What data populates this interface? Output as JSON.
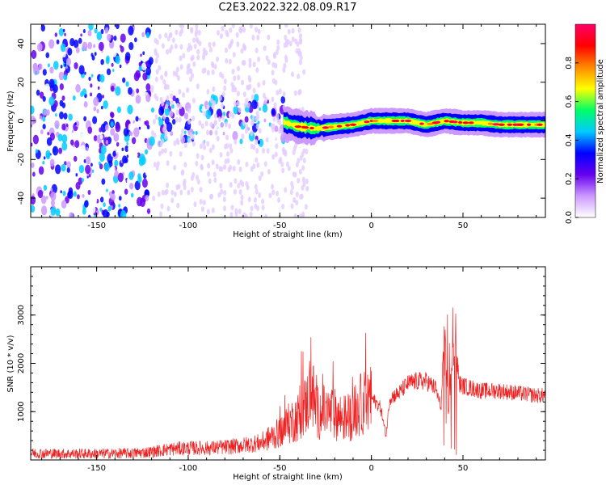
{
  "title": "C2E3.2022.322.08.09.R17",
  "colors": {
    "snr_line": "#ee2222",
    "frame": "#000000"
  },
  "chart_data": [
    {
      "type": "heatmap",
      "title": "C2E3.2022.322.08.09.R17",
      "xlabel": "Height of straight line (km)",
      "ylabel": "Frequency (Hz)",
      "xlim": [
        -186,
        95
      ],
      "ylim": [
        -50,
        50
      ],
      "xticks": [
        -150,
        -100,
        -50,
        0,
        50
      ],
      "xtick_labels": [
        "-150",
        "-100",
        "-50",
        "0",
        "50"
      ],
      "yticks": [
        -40,
        -20,
        0,
        20,
        40
      ],
      "ytick_labels": [
        "-40",
        "-20",
        "0",
        "20",
        "40"
      ],
      "colorbar": {
        "label": "Normalized spectral amplitude",
        "range": [
          0,
          1
        ],
        "ticks": [
          0.0,
          0.2,
          0.4,
          0.6,
          0.8
        ],
        "tick_labels": [
          "0.0",
          "0.2",
          "0.4",
          "0.6",
          "0.8"
        ],
        "colormap": [
          "#ffffff",
          "#cc99ff",
          "#6600ee",
          "#0000ff",
          "#00ccff",
          "#00ff66",
          "#ffff00",
          "#ff8800",
          "#ff0000",
          "#ff0066"
        ]
      },
      "ridge_frequency": {
        "x": [
          -50,
          -40,
          -30,
          -20,
          -10,
          0,
          10,
          20,
          30,
          40,
          50,
          60,
          70,
          80,
          90
        ],
        "y": [
          0,
          -3,
          -4,
          -3,
          -2,
          0,
          0,
          0,
          -2,
          0,
          -1,
          -1,
          -2,
          -2,
          -2
        ]
      },
      "noise_regions": [
        {
          "x_range": [
            -186,
            -120
          ],
          "freq_range": [
            -50,
            50
          ],
          "level": 0.3
        },
        {
          "x_range": [
            -120,
            -45
          ],
          "freq_range": [
            -12,
            12
          ],
          "level": 0.35
        }
      ]
    },
    {
      "type": "line",
      "xlabel": "Height of straight line (km)",
      "ylabel": "SNR (10 * v/v)",
      "xlim": [
        -186,
        95
      ],
      "ylim": [
        0,
        4000
      ],
      "xticks": [
        -150,
        -100,
        -50,
        0,
        50
      ],
      "xtick_labels": [
        "-150",
        "-100",
        "-50",
        "0",
        "50"
      ],
      "yticks": [
        1000,
        2000,
        3000
      ],
      "ytick_labels": [
        "1000",
        "2000",
        "3000"
      ],
      "series": [
        {
          "x": [
            -186,
            -170,
            -150,
            -130,
            -120,
            -110,
            -100,
            -90,
            -80,
            -70,
            -60,
            -55,
            -50,
            -45,
            -40,
            -35,
            -33,
            -30,
            -25,
            -20,
            -15,
            -10,
            -5,
            0,
            5,
            8,
            10,
            15,
            20,
            25,
            30,
            35,
            38,
            40,
            42,
            44,
            46,
            48,
            50,
            55,
            60,
            70,
            80,
            90,
            95
          ],
          "y": [
            150,
            140,
            140,
            150,
            180,
            240,
            260,
            260,
            280,
            320,
            380,
            500,
            600,
            800,
            950,
            1250,
            1650,
            1050,
            1050,
            1000,
            900,
            1000,
            1250,
            1300,
            1100,
            500,
            1300,
            1400,
            1600,
            1650,
            1650,
            1500,
            1100,
            2800,
            1000,
            2100,
            2400,
            1600,
            1550,
            1500,
            1450,
            1450,
            1400,
            1350,
            1350
          ]
        }
      ]
    }
  ]
}
